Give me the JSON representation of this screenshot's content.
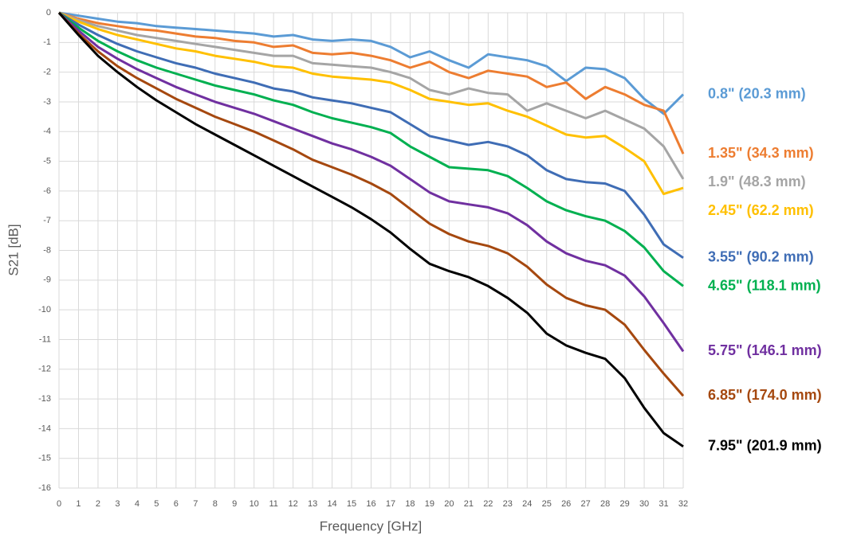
{
  "chart_data": {
    "type": "line",
    "x_label": "Frequency [GHz]",
    "y_label": "S21 [dB]",
    "x": [
      0,
      1,
      2,
      3,
      4,
      5,
      6,
      7,
      8,
      9,
      10,
      11,
      12,
      13,
      14,
      15,
      16,
      17,
      18,
      19,
      20,
      21,
      22,
      23,
      24,
      25,
      26,
      27,
      28,
      29,
      30,
      31,
      32
    ],
    "xlim": [
      0,
      32
    ],
    "xticks": [
      0,
      1,
      2,
      3,
      4,
      5,
      6,
      7,
      8,
      9,
      10,
      11,
      12,
      13,
      14,
      15,
      16,
      17,
      18,
      19,
      20,
      21,
      22,
      23,
      24,
      25,
      26,
      27,
      28,
      29,
      30,
      31,
      32
    ],
    "ylim": [
      -16,
      0
    ],
    "yticks": [
      0,
      -1,
      -2,
      -3,
      -4,
      -5,
      -6,
      -7,
      -8,
      -9,
      -10,
      -11,
      -12,
      -13,
      -14,
      -15,
      -16
    ],
    "grid": true,
    "legend": "right",
    "series": [
      {
        "name": "0.8\" (20.3 mm)",
        "color": "#5B9BD5",
        "values": [
          0,
          -0.1,
          -0.2,
          -0.3,
          -0.35,
          -0.45,
          -0.5,
          -0.55,
          -0.6,
          -0.65,
          -0.7,
          -0.8,
          -0.75,
          -0.9,
          -0.95,
          -0.9,
          -0.95,
          -1.15,
          -1.5,
          -1.3,
          -1.6,
          -1.85,
          -1.4,
          -1.5,
          -1.6,
          -1.8,
          -2.3,
          -1.85,
          -1.9,
          -2.2,
          -2.9,
          -3.4,
          -2.75
        ]
      },
      {
        "name": "1.35\" (34.3 mm)",
        "color": "#ED7D31",
        "values": [
          0,
          -0.2,
          -0.35,
          -0.45,
          -0.55,
          -0.6,
          -0.7,
          -0.8,
          -0.85,
          -0.95,
          -1.0,
          -1.15,
          -1.1,
          -1.35,
          -1.4,
          -1.35,
          -1.45,
          -1.6,
          -1.85,
          -1.65,
          -2.0,
          -2.2,
          -1.95,
          -2.05,
          -2.15,
          -2.5,
          -2.35,
          -2.9,
          -2.5,
          -2.75,
          -3.1,
          -3.3,
          -4.75
        ]
      },
      {
        "name": "1.9\" (48.3 mm)",
        "color": "#A5A5A5",
        "values": [
          0,
          -0.25,
          -0.45,
          -0.6,
          -0.75,
          -0.85,
          -0.95,
          -1.05,
          -1.15,
          -1.25,
          -1.35,
          -1.45,
          -1.45,
          -1.7,
          -1.75,
          -1.8,
          -1.85,
          -2.0,
          -2.2,
          -2.6,
          -2.75,
          -2.55,
          -2.7,
          -2.75,
          -3.3,
          -3.05,
          -3.3,
          -3.55,
          -3.3,
          -3.6,
          -3.9,
          -4.5,
          -5.6
        ]
      },
      {
        "name": "2.45\" (62.2 mm)",
        "color": "#FFC000",
        "values": [
          0,
          -0.3,
          -0.55,
          -0.75,
          -0.9,
          -1.05,
          -1.2,
          -1.3,
          -1.45,
          -1.55,
          -1.65,
          -1.8,
          -1.85,
          -2.05,
          -2.15,
          -2.2,
          -2.25,
          -2.35,
          -2.6,
          -2.9,
          -3.0,
          -3.1,
          -3.05,
          -3.3,
          -3.5,
          -3.8,
          -4.1,
          -4.2,
          -4.15,
          -4.55,
          -5.0,
          -6.1,
          -5.9
        ]
      },
      {
        "name": "3.55\" (90.2 mm)",
        "color": "#3F6DB5",
        "values": [
          0,
          -0.4,
          -0.75,
          -1.05,
          -1.3,
          -1.5,
          -1.7,
          -1.85,
          -2.05,
          -2.2,
          -2.35,
          -2.55,
          -2.65,
          -2.85,
          -2.95,
          -3.05,
          -3.2,
          -3.35,
          -3.75,
          -4.15,
          -4.3,
          -4.45,
          -4.35,
          -4.5,
          -4.8,
          -5.3,
          -5.6,
          -5.7,
          -5.75,
          -6.0,
          -6.8,
          -7.8,
          -8.25
        ]
      },
      {
        "name": "4.65\" (118.1 mm)",
        "color": "#00B050",
        "values": [
          0,
          -0.5,
          -0.95,
          -1.3,
          -1.6,
          -1.85,
          -2.05,
          -2.25,
          -2.45,
          -2.6,
          -2.75,
          -2.95,
          -3.1,
          -3.35,
          -3.55,
          -3.7,
          -3.85,
          -4.05,
          -4.5,
          -4.85,
          -5.2,
          -5.25,
          -5.3,
          -5.5,
          -5.9,
          -6.35,
          -6.65,
          -6.85,
          -7.0,
          -7.35,
          -7.9,
          -8.7,
          -9.2
        ]
      },
      {
        "name": "5.75\" (146.1 mm)",
        "color": "#7030A0",
        "values": [
          0,
          -0.6,
          -1.15,
          -1.55,
          -1.9,
          -2.2,
          -2.5,
          -2.75,
          -3.0,
          -3.2,
          -3.4,
          -3.65,
          -3.9,
          -4.15,
          -4.4,
          -4.6,
          -4.85,
          -5.15,
          -5.6,
          -6.05,
          -6.35,
          -6.45,
          -6.55,
          -6.75,
          -7.15,
          -7.7,
          -8.1,
          -8.35,
          -8.5,
          -8.85,
          -9.55,
          -10.45,
          -11.4
        ]
      },
      {
        "name": "6.85\" (174.0 mm)",
        "color": "#A5480F",
        "values": [
          0,
          -0.7,
          -1.3,
          -1.8,
          -2.2,
          -2.55,
          -2.9,
          -3.2,
          -3.5,
          -3.75,
          -4.0,
          -4.3,
          -4.6,
          -4.95,
          -5.2,
          -5.45,
          -5.75,
          -6.1,
          -6.6,
          -7.1,
          -7.45,
          -7.7,
          -7.85,
          -8.1,
          -8.55,
          -9.15,
          -9.6,
          -9.85,
          -10.0,
          -10.5,
          -11.35,
          -12.15,
          -12.9
        ]
      },
      {
        "name": "7.95\" (201.9 mm)",
        "color": "#000000",
        "values": [
          0,
          -0.75,
          -1.45,
          -2.0,
          -2.5,
          -2.95,
          -3.35,
          -3.75,
          -4.1,
          -4.45,
          -4.8,
          -5.15,
          -5.5,
          -5.85,
          -6.2,
          -6.55,
          -6.95,
          -7.4,
          -7.95,
          -8.45,
          -8.7,
          -8.9,
          -9.2,
          -9.6,
          -10.1,
          -10.8,
          -11.2,
          -11.45,
          -11.65,
          -12.3,
          -13.3,
          -14.15,
          -14.6
        ]
      }
    ]
  }
}
